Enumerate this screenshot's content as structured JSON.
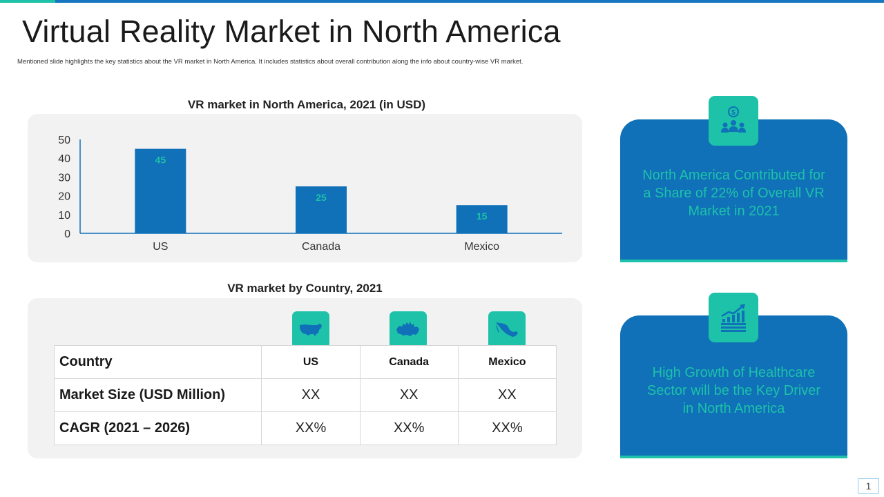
{
  "slide": {
    "title": "Virtual Reality Market in North America",
    "subtitle": "Mentioned slide highlights the key statistics about the VR market in North America. It includes statistics about overall contribution along the info about country-wise VR market.",
    "page_number": "1"
  },
  "chart_data": {
    "type": "bar",
    "title": "VR market in North America, 2021 (in USD)",
    "categories": [
      "US",
      "Canada",
      "Mexico"
    ],
    "values": [
      45,
      25,
      15
    ],
    "ylim": [
      0,
      50
    ],
    "yticks": [
      0,
      10,
      20,
      30,
      40,
      50
    ],
    "xlabel": "",
    "ylabel": "",
    "grid": false,
    "data_labels": true,
    "colors": {
      "bar": "#1070b8",
      "label": "#1dc2a8",
      "axis": "#1070b8"
    }
  },
  "table": {
    "title": "VR market by Country, 2021",
    "header": [
      "Country",
      "US",
      "Canada",
      "Mexico"
    ],
    "rows": [
      [
        "Market Size (USD Million)",
        "XX",
        "XX",
        "XX"
      ],
      [
        "CAGR (2021 – 2026)",
        "XX%",
        "XX%",
        "XX%"
      ]
    ],
    "column_icons": [
      "us-map-icon",
      "canada-map-icon",
      "mexico-map-icon"
    ]
  },
  "cards": [
    {
      "icon": "dollar-people-icon",
      "text": "North America Contributed  for a Share of 22% of Overall VR Market in 2021"
    },
    {
      "icon": "growth-chart-icon",
      "text": "High Growth of Healthcare Sector will be the Key Driver in North America"
    }
  ],
  "colors": {
    "primary": "#1070b8",
    "accent": "#1dc2a8",
    "panel": "#f2f2f2"
  }
}
